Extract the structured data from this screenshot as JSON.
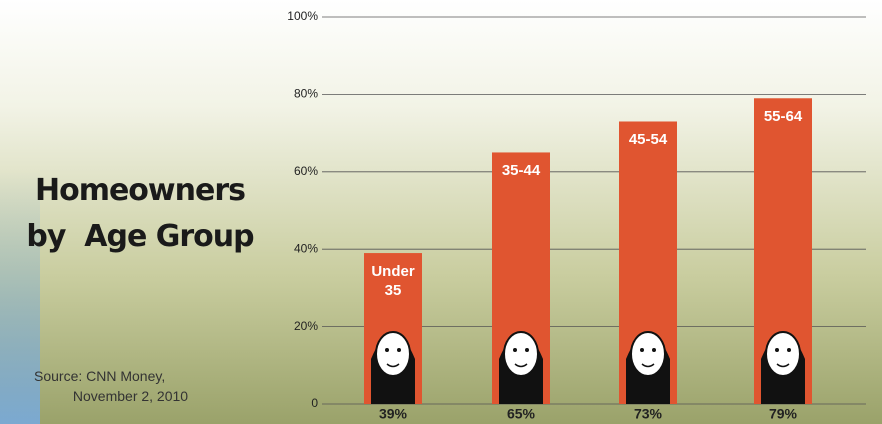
{
  "chart_data": {
    "type": "bar",
    "title": "Homeowners\nby  Age Group",
    "source": "Source: CNN Money,\n          November 2, 2010",
    "categories": [
      "Under 35",
      "35-44",
      "45-54",
      "55-64"
    ],
    "values": [
      39,
      65,
      73,
      79
    ],
    "value_labels": [
      "39%",
      "65%",
      "73%",
      "79%"
    ],
    "color": "#e05530",
    "ylim": [
      0,
      100
    ],
    "yticks": [
      0,
      {
        "value": 20,
        "label": "20%"
      },
      {
        "value": 40,
        "label": "40%"
      },
      {
        "value": 60,
        "label": "60%"
      },
      {
        "value": 80,
        "label": "80%"
      },
      {
        "value": 100,
        "label": "100%"
      }
    ],
    "grid": true
  }
}
